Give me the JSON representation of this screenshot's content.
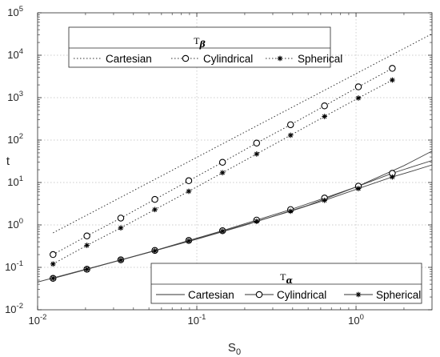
{
  "chart_data": {
    "type": "line",
    "xlabel": "S",
    "xlabel_sub": "0",
    "ylabel": "t",
    "xscale": "log",
    "yscale": "log",
    "xlim": [
      0.01,
      3
    ],
    "ylim": [
      0.01,
      100000
    ],
    "grid": true,
    "x_ticks": [
      {
        "value": 0.01,
        "base": "10",
        "exp": "-2"
      },
      {
        "value": 0.1,
        "base": "10",
        "exp": "-1"
      },
      {
        "value": 1,
        "base": "10",
        "exp": "0"
      }
    ],
    "y_ticks": [
      {
        "value": 0.01,
        "base": "10",
        "exp": "-2"
      },
      {
        "value": 0.1,
        "base": "10",
        "exp": "-1"
      },
      {
        "value": 1,
        "base": "10",
        "exp": "0"
      },
      {
        "value": 10,
        "base": "10",
        "exp": "1"
      },
      {
        "value": 100,
        "base": "10",
        "exp": "2"
      },
      {
        "value": 1000,
        "base": "10",
        "exp": "3"
      },
      {
        "value": 10000,
        "base": "10",
        "exp": "4"
      },
      {
        "value": 100000,
        "base": "10",
        "exp": "5"
      }
    ],
    "legends": [
      {
        "title": "T",
        "title_sub": "β",
        "placement": "top-left",
        "entries": [
          "Cartesian",
          "Cylindrical",
          "Spherical"
        ]
      },
      {
        "title": "T",
        "title_sub": "α",
        "placement": "bottom-right",
        "entries": [
          "Cartesian",
          "Cylindrical",
          "Spherical"
        ]
      }
    ],
    "marker_x": [
      0.0125,
      0.0204,
      0.0333,
      0.0545,
      0.089,
      0.145,
      0.2375,
      0.388,
      0.634,
      1.035,
      1.69
    ],
    "series": [
      {
        "name": "Cartesian",
        "group": "T_beta",
        "style": "dotted",
        "marker": "none",
        "x": [
          0.0125,
          3
        ],
        "y": [
          0.65,
          32000
        ]
      },
      {
        "name": "Cylindrical",
        "group": "T_beta",
        "style": "dotted",
        "marker": "circle",
        "y": [
          0.2,
          0.55,
          1.45,
          4.0,
          11.0,
          30,
          85,
          230,
          640,
          1800,
          4900
        ]
      },
      {
        "name": "Spherical",
        "group": "T_beta",
        "style": "dotted",
        "marker": "asterisk",
        "y": [
          0.12,
          0.33,
          0.85,
          2.3,
          6.2,
          17,
          47,
          130,
          360,
          980,
          2600
        ]
      },
      {
        "name": "Cartesian",
        "group": "T_alpha",
        "style": "solid",
        "marker": "none",
        "x": [
          0.01,
          0.02,
          0.05,
          0.1,
          0.2,
          0.5,
          1,
          2,
          3
        ],
        "y": [
          0.045,
          0.09,
          0.225,
          0.46,
          0.98,
          2.9,
          7.8,
          25,
          55
        ]
      },
      {
        "name": "Cylindrical",
        "group": "T_alpha",
        "style": "solid",
        "marker": "circle",
        "y": [
          0.055,
          0.09,
          0.15,
          0.25,
          0.43,
          0.73,
          1.3,
          2.3,
          4.3,
          8.2,
          16.5
        ]
      },
      {
        "name": "Spherical",
        "group": "T_alpha",
        "style": "solid",
        "marker": "asterisk",
        "y": [
          0.055,
          0.09,
          0.148,
          0.245,
          0.42,
          0.71,
          1.22,
          2.1,
          3.8,
          7.2,
          13.5
        ]
      }
    ],
    "alpha_curve_tails": {
      "Cylindrical": {
        "x": [
          1.69,
          2.3,
          3
        ],
        "y": [
          16.5,
          24,
          33
        ]
      },
      "Spherical": {
        "x": [
          1.69,
          2.3,
          3
        ],
        "y": [
          13.5,
          19,
          26
        ]
      }
    }
  }
}
